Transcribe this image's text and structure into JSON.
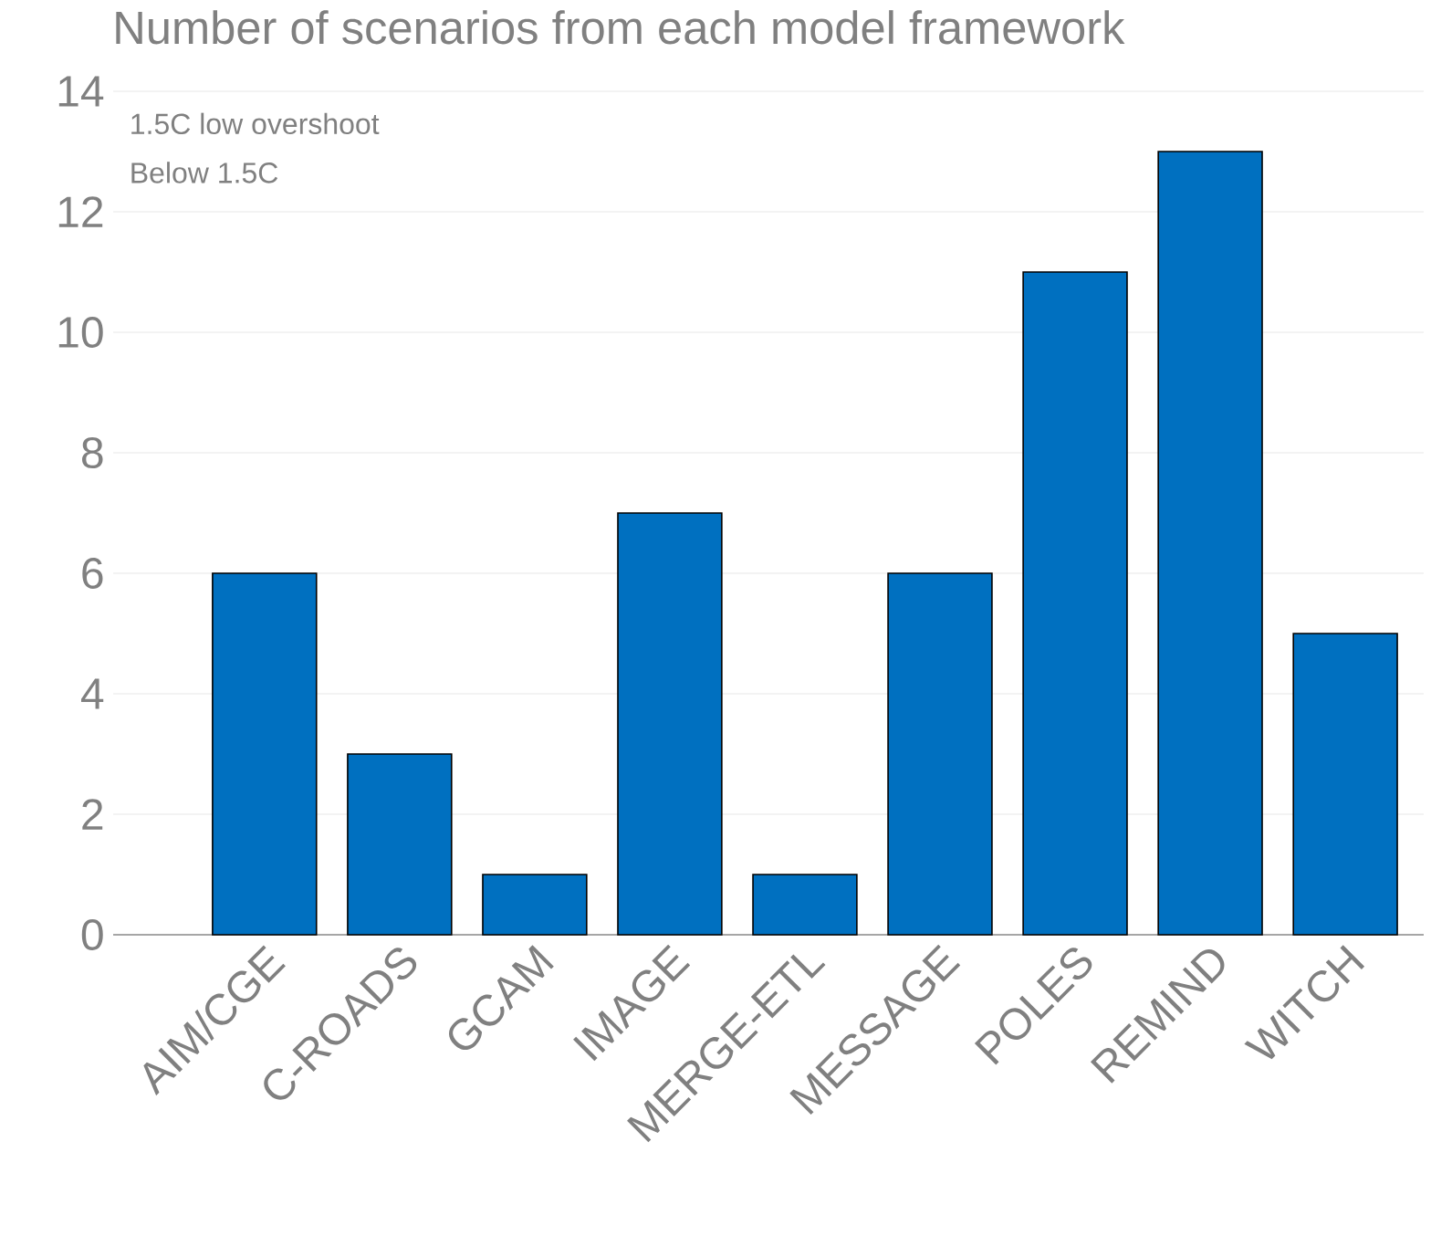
{
  "chart_data": {
    "type": "bar",
    "title": "Number of scenarios from each model framework",
    "categories": [
      "AIM/CGE",
      "C-ROADS",
      "GCAM",
      "IMAGE",
      "MERGE-ETL",
      "MESSAGE",
      "POLES",
      "REMIND",
      "WITCH"
    ],
    "values": [
      6,
      3,
      1,
      7,
      1,
      6,
      11,
      13,
      5
    ],
    "color": "#0070c0",
    "ylim": [
      0,
      14
    ],
    "yticks": [
      0,
      2,
      4,
      6,
      8,
      10,
      12,
      14
    ],
    "grid": "y",
    "annotations": [
      "1.5C low overshoot",
      "Below 1.5C"
    ]
  }
}
